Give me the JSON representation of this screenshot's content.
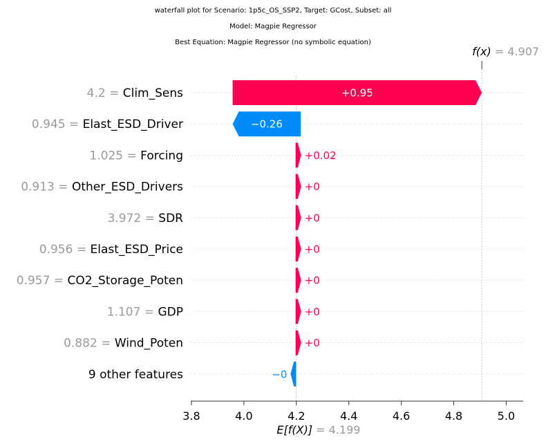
{
  "titles": [
    "waterfall plot for Scenario: 1p5c_OS_SSP2, Target: GCost, Subset: all",
    "Model: Magpie Regressor",
    "Best Equation: Magpie Regressor (no symbolic equation)"
  ],
  "chart_data": {
    "type": "waterfall",
    "fx": {
      "label": "f(x)",
      "value": "4.907",
      "x": 4.907
    },
    "base": {
      "label": "E[f(X)]",
      "value": "4.199",
      "x": 4.199
    },
    "features": [
      {
        "value": "4.2",
        "name": "Clim_Sens",
        "start": 3.957,
        "end": 4.907,
        "label": "+0.95"
      },
      {
        "value": "0.945",
        "name": "Elast_ESD_Driver",
        "start": 4.217,
        "end": 3.957,
        "label": "−0.26"
      },
      {
        "value": "1.025",
        "name": "Forcing",
        "start": 4.197,
        "end": 4.217,
        "label": "+0.02"
      },
      {
        "value": "0.913",
        "name": "Other_ESD_Drivers",
        "start": 4.197,
        "end": 4.197,
        "label": "+0"
      },
      {
        "value": "3.972",
        "name": "SDR",
        "start": 4.197,
        "end": 4.197,
        "label": "+0"
      },
      {
        "value": "0.956",
        "name": "Elast_ESD_Price",
        "start": 4.197,
        "end": 4.197,
        "label": "+0"
      },
      {
        "value": "0.957",
        "name": "CO2_Storage_Poten",
        "start": 4.197,
        "end": 4.197,
        "label": "+0"
      },
      {
        "value": "1.107",
        "name": "GDP",
        "start": 4.197,
        "end": 4.197,
        "label": "+0"
      },
      {
        "value": "0.882",
        "name": "Wind_Poten",
        "start": 4.197,
        "end": 4.197,
        "label": "+0"
      },
      {
        "value": "",
        "name": "9 other features",
        "start": 4.199,
        "end": 4.197,
        "label": "−0"
      }
    ],
    "xlim": [
      3.8,
      5.07
    ],
    "xticks": [
      "3.8",
      "4.0",
      "4.2",
      "4.4",
      "4.6",
      "4.8",
      "5.0"
    ],
    "colors": {
      "positive": "#ff0051",
      "negative": "#008bfb",
      "value_gray": "#999999"
    }
  }
}
